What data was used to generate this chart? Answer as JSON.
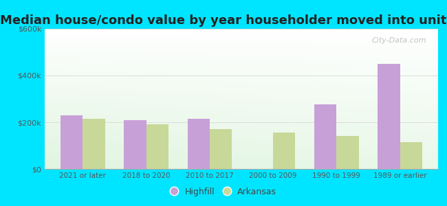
{
  "title": "Median house/condo value by year householder moved into unit",
  "categories": [
    "2021 or later",
    "2018 to 2020",
    "2010 to 2017",
    "2000 to 2009",
    "1990 to 1999",
    "1989 or earlier"
  ],
  "highfill_values": [
    230000,
    210000,
    215000,
    0,
    275000,
    450000
  ],
  "arkansas_values": [
    215000,
    190000,
    170000,
    155000,
    140000,
    115000
  ],
  "highfill_color": "#c8a0d8",
  "arkansas_color": "#c8d898",
  "background_outer": "#00e5ff",
  "ylim": [
    0,
    600000
  ],
  "yticks": [
    0,
    200000,
    400000,
    600000
  ],
  "ytick_labels": [
    "$0",
    "$200k",
    "$400k",
    "$600k"
  ],
  "title_fontsize": 13,
  "legend_labels": [
    "Highfill",
    "Arkansas"
  ],
  "watermark": "City-Data.com",
  "bar_width": 0.35,
  "grid_color": "#dddddd"
}
